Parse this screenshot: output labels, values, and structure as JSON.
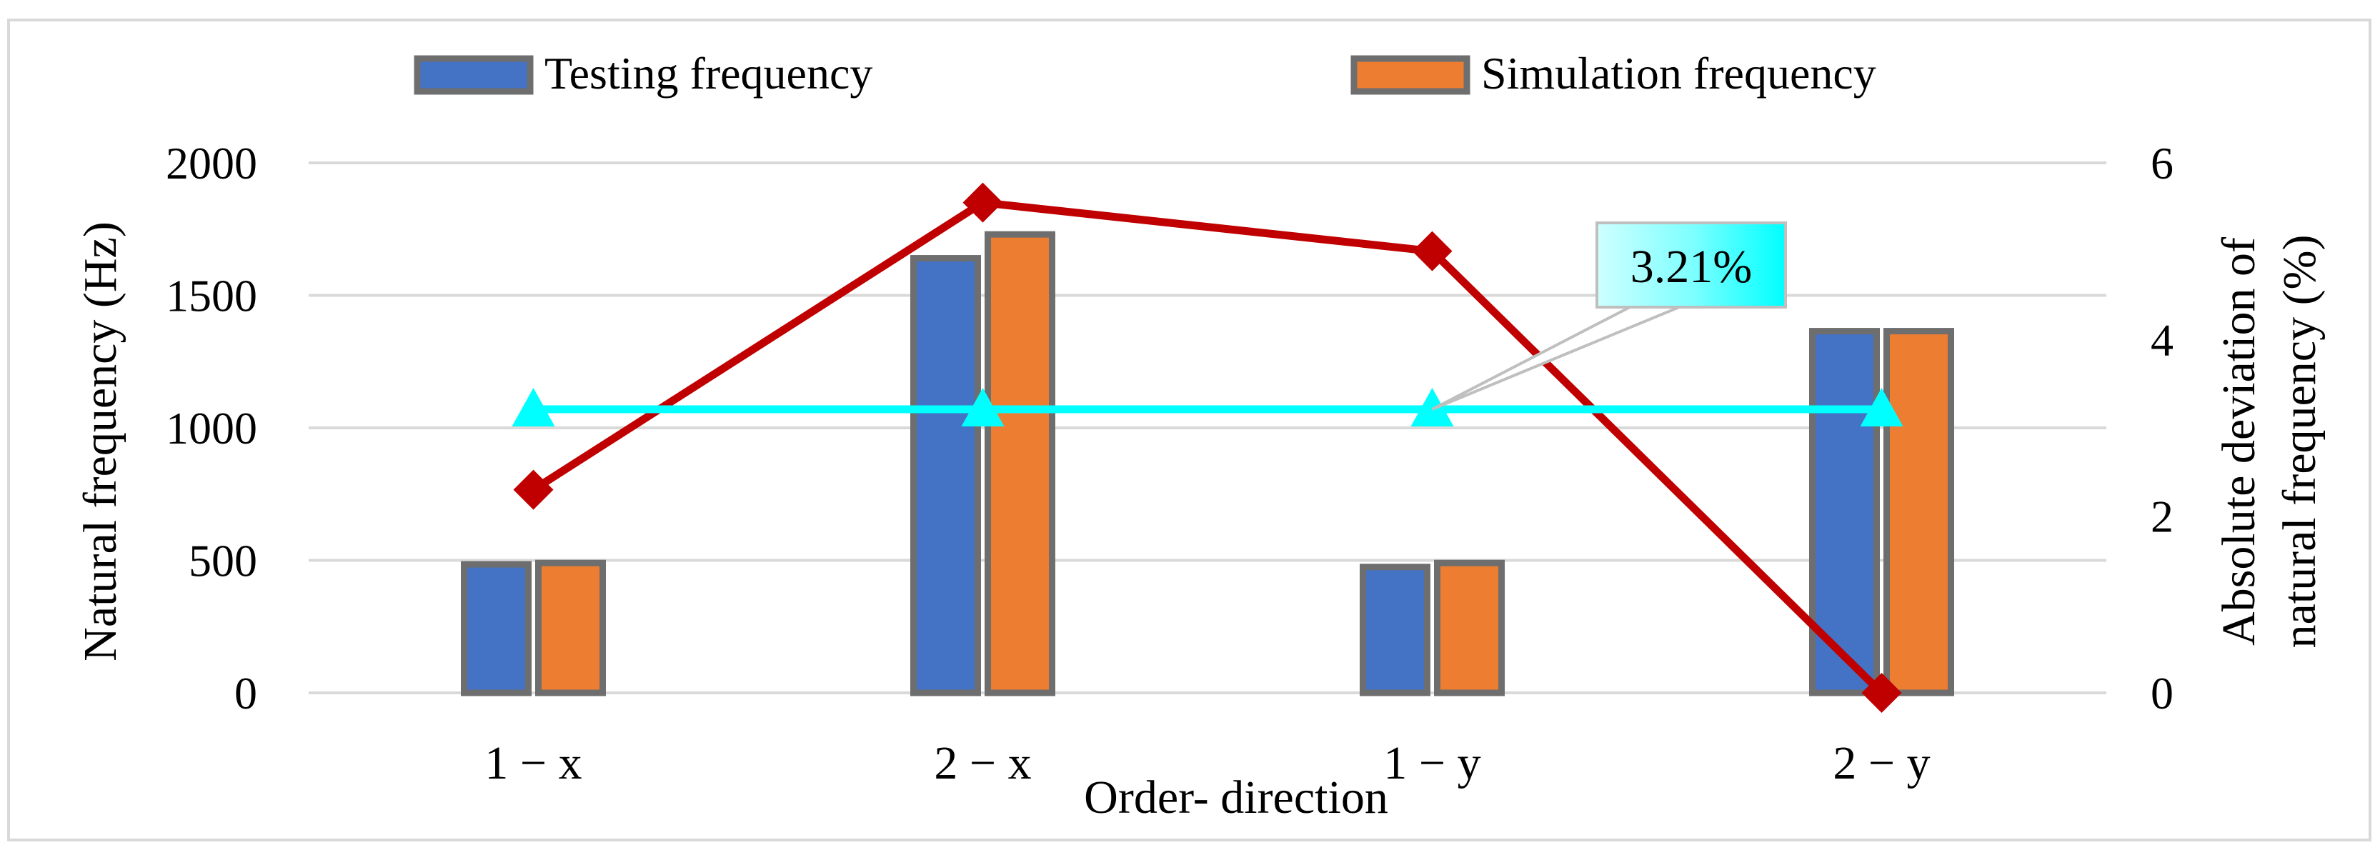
{
  "chart_data": {
    "type": "bar",
    "categories": [
      "1 − x",
      "2 − x",
      "1 − y",
      "2 − y"
    ],
    "xlabel": "Order- direction",
    "ylabel": "Natural frequency (Hz)",
    "y2label_line1": "Absolute deviation of",
    "y2label_line2": "natural frequency (%)",
    "ylim": [
      0,
      2000
    ],
    "yticks": [
      "0",
      "500",
      "1000",
      "1500",
      "2000"
    ],
    "y2lim": [
      0,
      6
    ],
    "y2ticks": [
      "0",
      "2",
      "4",
      "6"
    ],
    "grid": true,
    "legend_position": "top",
    "series": [
      {
        "name": "Testing frequency",
        "type": "bar",
        "axis": "left",
        "color": "#4472C4",
        "values": [
          485,
          1640,
          475,
          1365
        ]
      },
      {
        "name": "Simulation frequency",
        "type": "bar",
        "axis": "left",
        "color": "#ED7D31",
        "values": [
          490,
          1730,
          490,
          1365
        ]
      },
      {
        "type": "line",
        "axis": "right",
        "color": "#C00000",
        "marker": "diamond",
        "values": [
          2.3,
          5.55,
          5.0,
          0.0
        ]
      },
      {
        "type": "line",
        "axis": "right",
        "color": "#00FFFF",
        "marker": "triangle",
        "values": [
          3.21,
          3.21,
          3.21,
          3.21
        ]
      }
    ],
    "annotation": {
      "text": "3.21%",
      "target_series": 3,
      "target_index": 2
    }
  }
}
